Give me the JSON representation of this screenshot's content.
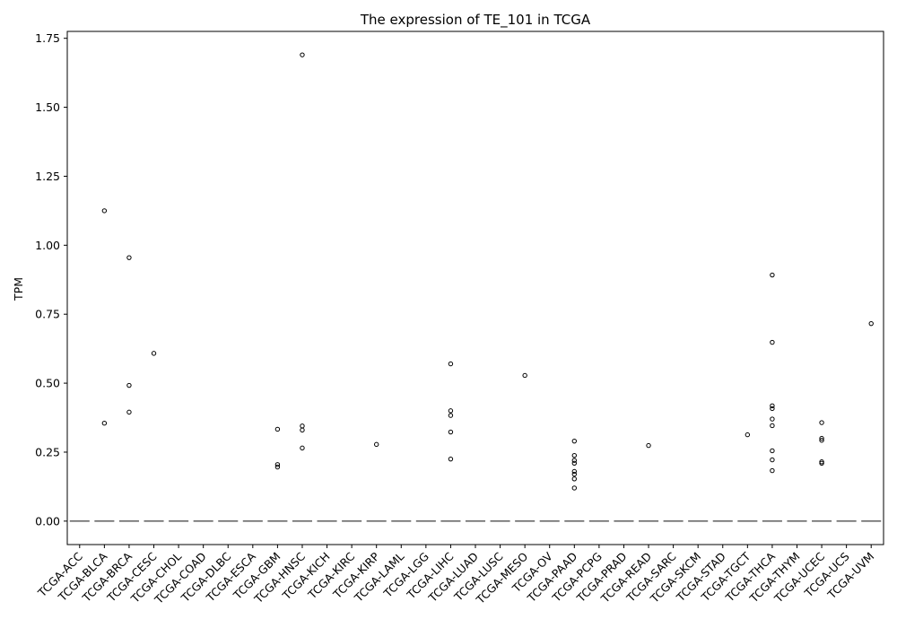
{
  "chart_data": {
    "type": "boxplot",
    "title": "The expression of TE_101 in TCGA",
    "xlabel": "",
    "ylabel": "TPM",
    "ylim": [
      -0.085,
      1.775
    ],
    "yticks": [
      0.0,
      0.25,
      0.5,
      0.75,
      1.0,
      1.25,
      1.5,
      1.75
    ],
    "ytick_labels": [
      "0.00",
      "0.25",
      "0.50",
      "0.75",
      "1.00",
      "1.25",
      "1.50",
      "1.75"
    ],
    "grid": false,
    "categories": [
      "TCGA-ACC",
      "TCGA-BLCA",
      "TCGA-BRCA",
      "TCGA-CESC",
      "TCGA-CHOL",
      "TCGA-COAD",
      "TCGA-DLBC",
      "TCGA-ESCA",
      "TCGA-GBM",
      "TCGA-HNSC",
      "TCGA-KICH",
      "TCGA-KIRC",
      "TCGA-KIRP",
      "TCGA-LAML",
      "TCGA-LGG",
      "TCGA-LIHC",
      "TCGA-LUAD",
      "TCGA-LUSC",
      "TCGA-MESO",
      "TCGA-OV",
      "TCGA-PAAD",
      "TCGA-PCPG",
      "TCGA-PRAD",
      "TCGA-READ",
      "TCGA-SARC",
      "TCGA-SKCM",
      "TCGA-STAD",
      "TCGA-TGCT",
      "TCGA-THCA",
      "TCGA-THYM",
      "TCGA-UCEC",
      "TCGA-UCS",
      "TCGA-UVM"
    ],
    "box_value": 0.0,
    "colors": {
      "box": "#6b6b6b",
      "outlier": "#000000",
      "axis": "#000000"
    },
    "outliers": [
      {
        "category": "TCGA-BLCA",
        "values": [
          1.125,
          0.355
        ]
      },
      {
        "category": "TCGA-BRCA",
        "values": [
          0.955,
          0.492,
          0.395
        ]
      },
      {
        "category": "TCGA-CESC",
        "values": [
          0.608
        ]
      },
      {
        "category": "TCGA-GBM",
        "values": [
          0.333,
          0.205,
          0.196
        ]
      },
      {
        "category": "TCGA-HNSC",
        "values": [
          1.69,
          0.345,
          0.33,
          0.265
        ]
      },
      {
        "category": "TCGA-KIRP",
        "values": [
          0.278
        ]
      },
      {
        "category": "TCGA-LIHC",
        "values": [
          0.57,
          0.4,
          0.383,
          0.323,
          0.225
        ]
      },
      {
        "category": "TCGA-MESO",
        "values": [
          0.528
        ]
      },
      {
        "category": "TCGA-PAAD",
        "values": [
          0.29,
          0.238,
          0.22,
          0.21,
          0.18,
          0.17,
          0.153,
          0.12
        ]
      },
      {
        "category": "TCGA-READ",
        "values": [
          0.274
        ]
      },
      {
        "category": "TCGA-TGCT",
        "values": [
          0.313
        ]
      },
      {
        "category": "TCGA-THCA",
        "values": [
          0.892,
          0.648,
          0.418,
          0.408,
          0.37,
          0.346,
          0.255,
          0.222,
          0.183
        ]
      },
      {
        "category": "TCGA-UCEC",
        "values": [
          0.357,
          0.3,
          0.293,
          0.215,
          0.21
        ]
      },
      {
        "category": "TCGA-UVM",
        "values": [
          0.716
        ]
      }
    ]
  }
}
